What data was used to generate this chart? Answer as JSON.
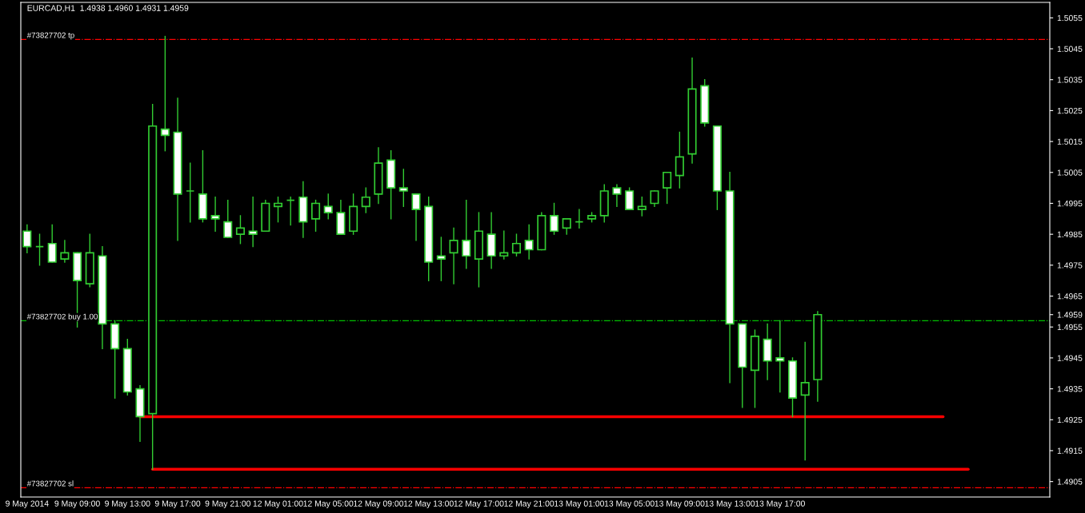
{
  "chart_data": {
    "type": "candlestick",
    "title": "EURCAD,H1  1.4938 1.4960 1.4931 1.4959",
    "categories": [
      "9 May 2014",
      null,
      null,
      null,
      "9 May 09:00",
      null,
      null,
      null,
      "9 May 13:00",
      null,
      null,
      null,
      "9 May 17:00",
      null,
      null,
      null,
      "9 May 21:00",
      null,
      null,
      null,
      "12 May 01:00",
      null,
      null,
      null,
      "12 May 05:00",
      null,
      null,
      null,
      "12 May 09:00",
      null,
      null,
      null,
      "12 May 13:00",
      null,
      null,
      null,
      "12 May 17:00",
      null,
      null,
      null,
      "12 May 21:00",
      null,
      null,
      null,
      "13 May 01:00",
      null,
      null,
      null,
      "13 May 05:00",
      null,
      null,
      null,
      "13 May 09:00",
      null,
      null,
      null,
      "13 May 13:00",
      null,
      null,
      null,
      "13 May 17:00",
      null,
      null,
      null,
      null,
      null,
      null,
      null,
      null,
      null,
      null,
      null,
      null,
      null,
      null,
      null,
      null,
      null,
      null,
      null,
      null,
      null
    ],
    "ohlc": [
      [
        1.4986,
        1.4988,
        1.4979,
        1.4981
      ],
      [
        1.4981,
        1.4985,
        1.4975,
        1.4981
      ],
      [
        1.4982,
        1.4988,
        1.4976,
        1.4976
      ],
      [
        1.4977,
        1.4983,
        1.4976,
        1.4979
      ],
      [
        1.4979,
        1.4979,
        1.4955,
        1.497
      ],
      [
        1.4969,
        1.4985,
        1.4968,
        1.4979
      ],
      [
        1.4978,
        1.4981,
        1.4948,
        1.4956
      ],
      [
        1.4956,
        1.4957,
        1.4932,
        1.4948
      ],
      [
        1.4948,
        1.4951,
        1.4933,
        1.4934
      ],
      [
        1.4935,
        1.4936,
        1.4918,
        1.4926
      ],
      [
        1.4927,
        1.5027,
        1.4909,
        1.502
      ],
      [
        1.5019,
        1.5049,
        1.5012,
        1.5017
      ],
      [
        1.5018,
        1.5029,
        1.4983,
        1.4998
      ],
      [
        1.4999,
        1.5008,
        1.4989,
        1.4999
      ],
      [
        1.4998,
        1.5012,
        1.4989,
        1.499
      ],
      [
        1.4991,
        1.4997,
        1.4986,
        1.499
      ],
      [
        1.4989,
        1.4996,
        1.4984,
        1.4984
      ],
      [
        1.4985,
        1.4991,
        1.4982,
        1.4987
      ],
      [
        1.4986,
        1.4997,
        1.4981,
        1.4985
      ],
      [
        1.4986,
        1.4996,
        1.4986,
        1.4995
      ],
      [
        1.4994,
        1.4997,
        1.4989,
        1.4995
      ],
      [
        1.4996,
        1.4997,
        1.4988,
        1.4996
      ],
      [
        1.4997,
        1.5002,
        1.4984,
        1.4989
      ],
      [
        1.499,
        1.4996,
        1.4986,
        1.4995
      ],
      [
        1.4994,
        1.4998,
        1.499,
        1.4992
      ],
      [
        1.4992,
        1.4996,
        1.4985,
        1.4985
      ],
      [
        1.4986,
        1.4998,
        1.4985,
        1.4994
      ],
      [
        1.4994,
        1.5,
        1.4992,
        1.4997
      ],
      [
        1.4998,
        1.5013,
        1.4995,
        1.5008
      ],
      [
        1.5009,
        1.5012,
        1.499,
        1.5
      ],
      [
        1.5,
        1.5006,
        1.4994,
        1.4999
      ],
      [
        1.4998,
        1.4998,
        1.4983,
        1.4993
      ],
      [
        1.4994,
        1.4997,
        1.497,
        1.4976
      ],
      [
        1.4978,
        1.4984,
        1.497,
        1.4977
      ],
      [
        1.4979,
        1.4987,
        1.4969,
        1.4983
      ],
      [
        1.4983,
        1.4996,
        1.4974,
        1.4978
      ],
      [
        1.4977,
        1.4992,
        1.4968,
        1.4986
      ],
      [
        1.4985,
        1.4992,
        1.4974,
        1.4978
      ],
      [
        1.4978,
        1.4986,
        1.4977,
        1.4979
      ],
      [
        1.4979,
        1.4985,
        1.4978,
        1.4982
      ],
      [
        1.4983,
        1.4988,
        1.4977,
        1.498
      ],
      [
        1.498,
        1.4992,
        1.498,
        1.4991
      ],
      [
        1.4991,
        1.4995,
        1.4985,
        1.4986
      ],
      [
        1.4987,
        1.499,
        1.4985,
        1.499
      ],
      [
        1.4989,
        1.4993,
        1.4987,
        1.4989
      ],
      [
        1.499,
        1.4992,
        1.4989,
        1.4991
      ],
      [
        1.4991,
        1.5001,
        1.4989,
        1.4999
      ],
      [
        1.5,
        1.5001,
        1.4994,
        1.4998
      ],
      [
        1.4999,
        1.5,
        1.4993,
        1.4993
      ],
      [
        1.4993,
        1.4997,
        1.4991,
        1.4994
      ],
      [
        1.4995,
        1.4999,
        1.4994,
        1.4999
      ],
      [
        1.5,
        1.5005,
        1.4995,
        1.5005
      ],
      [
        1.5004,
        1.5018,
        1.5,
        1.501
      ],
      [
        1.5011,
        1.5042,
        1.5008,
        1.5032
      ],
      [
        1.5033,
        1.5035,
        1.502,
        1.5021
      ],
      [
        1.502,
        1.502,
        1.4993,
        1.4999
      ],
      [
        1.4999,
        1.5005,
        1.4937,
        1.4956
      ],
      [
        1.4956,
        1.4956,
        1.4929,
        1.4942
      ],
      [
        1.4941,
        1.4954,
        1.4929,
        1.4952
      ],
      [
        1.4951,
        1.4956,
        1.4938,
        1.4944
      ],
      [
        1.4945,
        1.4957,
        1.4934,
        1.4944
      ],
      [
        1.4944,
        1.4945,
        1.4926,
        1.4932
      ],
      [
        1.4933,
        1.495,
        1.4912,
        1.4937
      ],
      [
        1.4938,
        1.496,
        1.4931,
        1.4959
      ],
      null,
      null,
      null,
      null,
      null,
      null,
      null,
      null,
      null,
      null,
      null,
      null,
      null,
      null,
      null,
      null,
      null,
      null
    ],
    "series": [
      {
        "type": "line",
        "color": "#ff0000",
        "values": [
          null,
          null,
          null,
          null,
          null,
          null,
          null,
          null,
          null,
          1.4926,
          1.4926,
          1.4926,
          1.4926,
          1.4926,
          1.4926,
          1.4926,
          1.4926,
          1.4926,
          1.4926,
          1.4926,
          1.4926,
          1.4926,
          1.4926,
          1.4926,
          1.4926,
          1.4926,
          1.4926,
          1.4926,
          1.4926,
          1.4926,
          1.4926,
          1.4926,
          1.4926,
          1.4926,
          1.4926,
          1.4926,
          1.4926,
          1.4926,
          1.4926,
          1.4926,
          1.4926,
          1.4926,
          1.4926,
          1.4926,
          1.4926,
          1.4926,
          1.4926,
          1.4926,
          1.4926,
          1.4926,
          1.4926,
          1.4926,
          1.4926,
          1.4926,
          1.4926,
          1.4926,
          1.4926,
          1.4926,
          1.4926,
          1.4926,
          1.4926,
          1.4926,
          1.4926,
          1.4926,
          1.4926,
          1.4926,
          1.4926,
          1.4926,
          1.4926,
          1.4926,
          1.4926,
          1.4926,
          1.4926,
          1.4926,
          null,
          null,
          null,
          null,
          null,
          null,
          null,
          null
        ]
      },
      {
        "type": "line",
        "color": "#ff0000",
        "values": [
          null,
          null,
          null,
          null,
          null,
          null,
          null,
          null,
          null,
          null,
          1.4909,
          1.4909,
          1.4909,
          1.4909,
          1.4909,
          1.4909,
          1.4909,
          1.4909,
          1.4909,
          1.4909,
          1.4909,
          1.4909,
          1.4909,
          1.4909,
          1.4909,
          1.4909,
          1.4909,
          1.4909,
          1.4909,
          1.4909,
          1.4909,
          1.4909,
          1.4909,
          1.4909,
          1.4909,
          1.4909,
          1.4909,
          1.4909,
          1.4909,
          1.4909,
          1.4909,
          1.4909,
          1.4909,
          1.4909,
          1.4909,
          1.4909,
          1.4909,
          1.4909,
          1.4909,
          1.4909,
          1.4909,
          1.4909,
          1.4909,
          1.4909,
          1.4909,
          1.4909,
          1.4909,
          1.4909,
          1.4909,
          1.4909,
          1.4909,
          1.4909,
          1.4909,
          1.4909,
          1.4909,
          1.4909,
          1.4909,
          1.4909,
          1.4909,
          1.4909,
          1.4909,
          1.4909,
          1.4909,
          1.4909,
          1.4909,
          1.4909,
          null,
          null,
          null,
          null,
          null,
          null
        ]
      }
    ],
    "ref_lines": [
      {
        "axis": "y",
        "value": 1.5048,
        "label": "#73827702 tp",
        "color": "#ff0000",
        "line_style": "dashdot"
      },
      {
        "axis": "y",
        "value": 1.4957,
        "label": "#73827702 buy 1.00",
        "color": "#00c000",
        "line_style": "dashdot"
      },
      {
        "axis": "y",
        "value": 1.4903,
        "label": "#73827702 sl",
        "color": "#ff0000",
        "line_style": "dashdot"
      }
    ],
    "ylim": [
      1.49,
      1.506
    ],
    "yticks": [
      1.5055,
      1.5045,
      1.5035,
      1.5025,
      1.5015,
      1.5005,
      1.4995,
      1.4985,
      1.4975,
      1.4965,
      1.4959,
      1.4955,
      1.4945,
      1.4935,
      1.4925,
      1.4915,
      1.4905
    ],
    "grid": false,
    "legend": false
  }
}
